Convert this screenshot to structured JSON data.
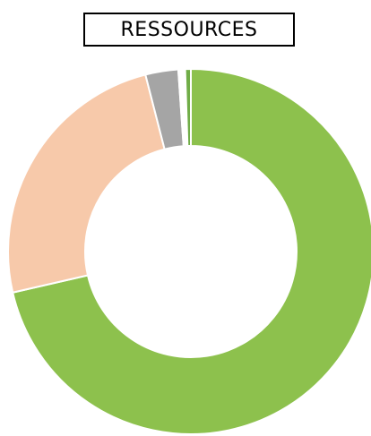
{
  "chart_data": {
    "type": "pie",
    "title": "RESSOURCES",
    "donut": true,
    "legend": "none",
    "slices": [
      {
        "value": 71.4,
        "color": "#8dc14d"
      },
      {
        "value": 24.6,
        "color": "#f7c9aa"
      },
      {
        "value": 2.9,
        "color": "#a5a5a5"
      },
      {
        "value": 0.6,
        "color": "#ffffff"
      },
      {
        "value": 0.5,
        "color": "#70ad47"
      }
    ]
  }
}
